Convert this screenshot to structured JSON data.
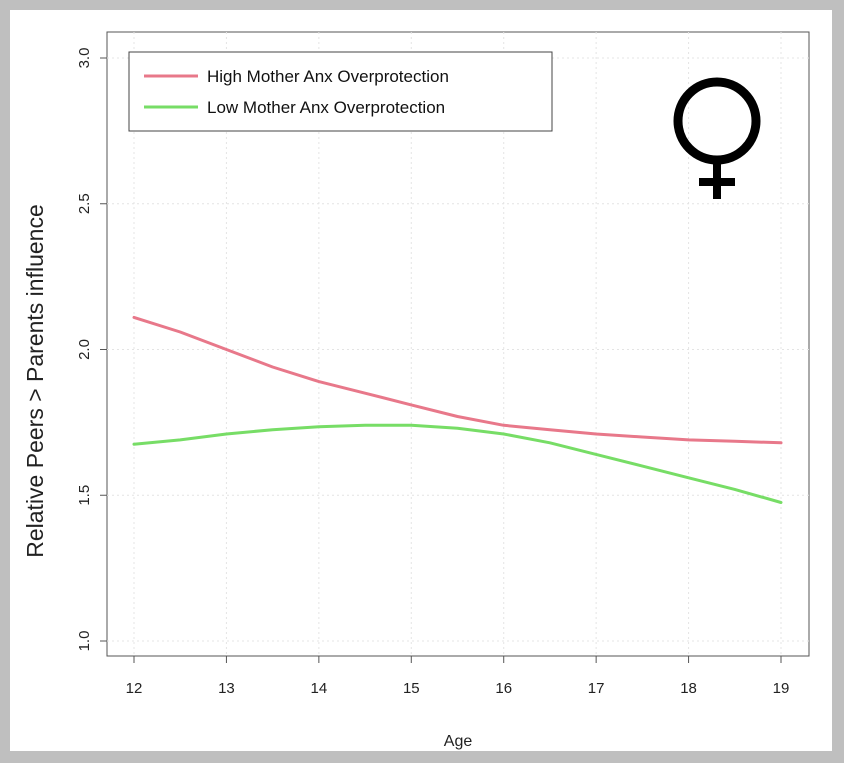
{
  "chart_data": {
    "type": "line",
    "title": "",
    "xlabel": "Age",
    "ylabel": "Relative Peers > Parents influence",
    "xlim": [
      12,
      19
    ],
    "ylim": [
      1.0,
      3.0
    ],
    "x_ticks": [
      "12",
      "13",
      "14",
      "15",
      "16",
      "17",
      "18",
      "19"
    ],
    "y_ticks": [
      "1.0",
      "1.5",
      "2.0",
      "2.5",
      "3.0"
    ],
    "grid": true,
    "legend_position": "top-left",
    "series": [
      {
        "name": "High Mother Anx Overprotection",
        "color": "#e8788a",
        "x": [
          12,
          12.5,
          13,
          13.5,
          14,
          14.5,
          15,
          15.5,
          16,
          16.5,
          17,
          17.5,
          18,
          18.5,
          19
        ],
        "y": [
          2.11,
          2.06,
          2.0,
          1.94,
          1.89,
          1.85,
          1.81,
          1.77,
          1.74,
          1.725,
          1.71,
          1.7,
          1.69,
          1.685,
          1.68
        ]
      },
      {
        "name": "Low Mother Anx Overprotection",
        "color": "#77dd66",
        "x": [
          12,
          12.5,
          13,
          13.5,
          14,
          14.5,
          15,
          15.5,
          16,
          16.5,
          17,
          17.5,
          18,
          18.5,
          19
        ],
        "y": [
          1.675,
          1.69,
          1.71,
          1.725,
          1.735,
          1.74,
          1.74,
          1.73,
          1.71,
          1.68,
          1.64,
          1.6,
          1.56,
          1.52,
          1.475
        ]
      }
    ],
    "annotation": {
      "symbol": "♀",
      "icon": "female-symbol-icon"
    }
  }
}
